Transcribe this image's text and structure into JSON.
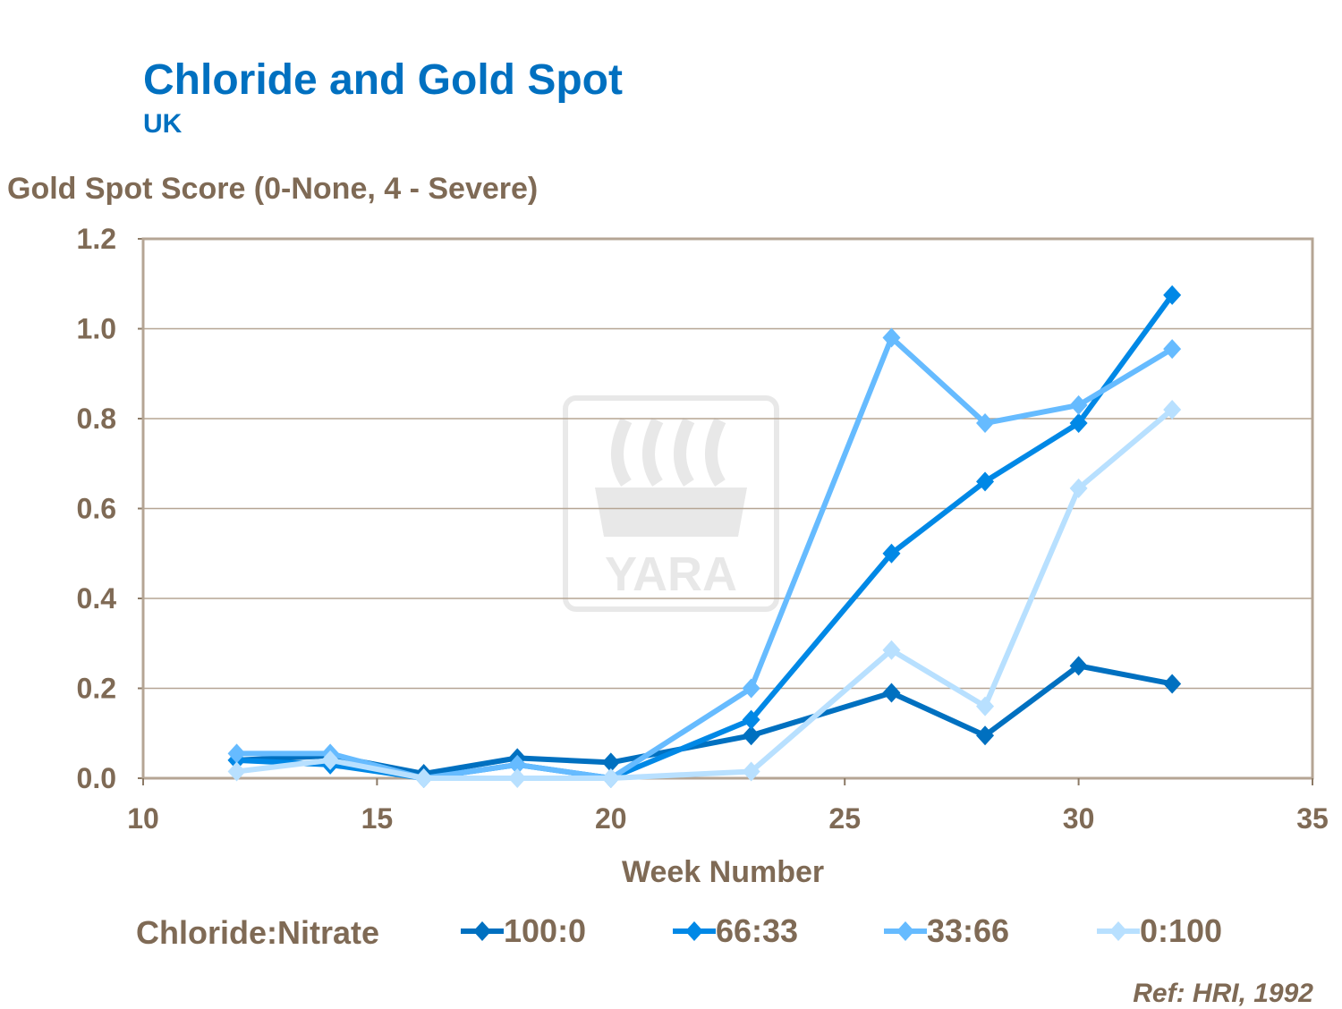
{
  "chart_data": {
    "type": "line",
    "title": "Chloride and Gold Spot",
    "subtitle": "UK",
    "ylabel": "Gold Spot Score (0-None, 4 - Severe)",
    "xlabel": "Week Number",
    "xlim": [
      10,
      35
    ],
    "ylim": [
      0,
      1.2
    ],
    "xticks": [
      "10",
      "15",
      "20",
      "25",
      "30",
      "35"
    ],
    "yticks": [
      "0.0",
      "0.2",
      "0.4",
      "0.6",
      "0.8",
      "1.0",
      "1.2"
    ],
    "grid": "horizontal",
    "legend_title": "Chloride:Nitrate",
    "legend_placement": "bottom",
    "x": [
      12,
      14,
      16,
      18,
      20,
      23,
      26,
      28,
      30,
      32
    ],
    "series": [
      {
        "name": "100:0",
        "color": "#0070C0",
        "values": [
          0.04,
          0.05,
          0.01,
          0.045,
          0.035,
          0.095,
          0.19,
          0.095,
          0.25,
          0.21
        ]
      },
      {
        "name": "66:33",
        "color": "#0088E6",
        "values": [
          0.04,
          0.03,
          0.0,
          0.03,
          0.0,
          0.13,
          0.5,
          0.66,
          0.79,
          1.075
        ]
      },
      {
        "name": "33:66",
        "color": "#66BBFF",
        "values": [
          0.055,
          0.055,
          0.0,
          0.03,
          0.0,
          0.2,
          0.98,
          0.79,
          0.83,
          0.955
        ]
      },
      {
        "name": "0:100",
        "color": "#B8E0FF",
        "values": [
          0.015,
          0.04,
          0.0,
          0.0,
          0.0,
          0.015,
          0.285,
          0.16,
          0.645,
          0.82
        ]
      }
    ],
    "annotation": "Ref: HRI, 1992"
  },
  "watermark": "YARA"
}
